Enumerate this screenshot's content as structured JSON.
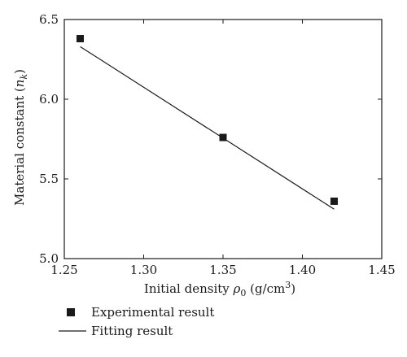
{
  "chart_data": {
    "type": "scatter",
    "xlabel": {
      "prefix": "Initial density ",
      "symbol": "ρ",
      "subscript": "0",
      "unit_before_sup": " (g/cm",
      "unit_sup": "3",
      "unit_after_sup": ")"
    },
    "ylabel": {
      "prefix": "Material constant (",
      "symbol": "n",
      "subscript": "k",
      "suffix": ")"
    },
    "xlim": [
      1.25,
      1.45
    ],
    "ylim": [
      5.0,
      6.5
    ],
    "x_ticks": [
      1.25,
      1.3,
      1.35,
      1.4,
      1.45
    ],
    "x_tick_labels": [
      "1.25",
      "1.30",
      "1.35",
      "1.40",
      "1.45"
    ],
    "y_ticks": [
      5.0,
      5.5,
      6.0,
      6.5
    ],
    "y_tick_labels": [
      "5.0",
      "5.5",
      "6.0",
      "6.5"
    ],
    "grid": false,
    "legend_position": "bottom-left",
    "series": [
      {
        "name": "Experimental result",
        "kind": "points",
        "marker": "square",
        "color": "#1a1a1a",
        "x": [
          1.26,
          1.35,
          1.42
        ],
        "y": [
          6.38,
          5.76,
          5.36
        ]
      },
      {
        "name": "Fitting result",
        "kind": "line",
        "color": "#1a1a1a",
        "x": [
          1.26,
          1.42
        ],
        "y": [
          6.33,
          5.31
        ]
      }
    ]
  }
}
